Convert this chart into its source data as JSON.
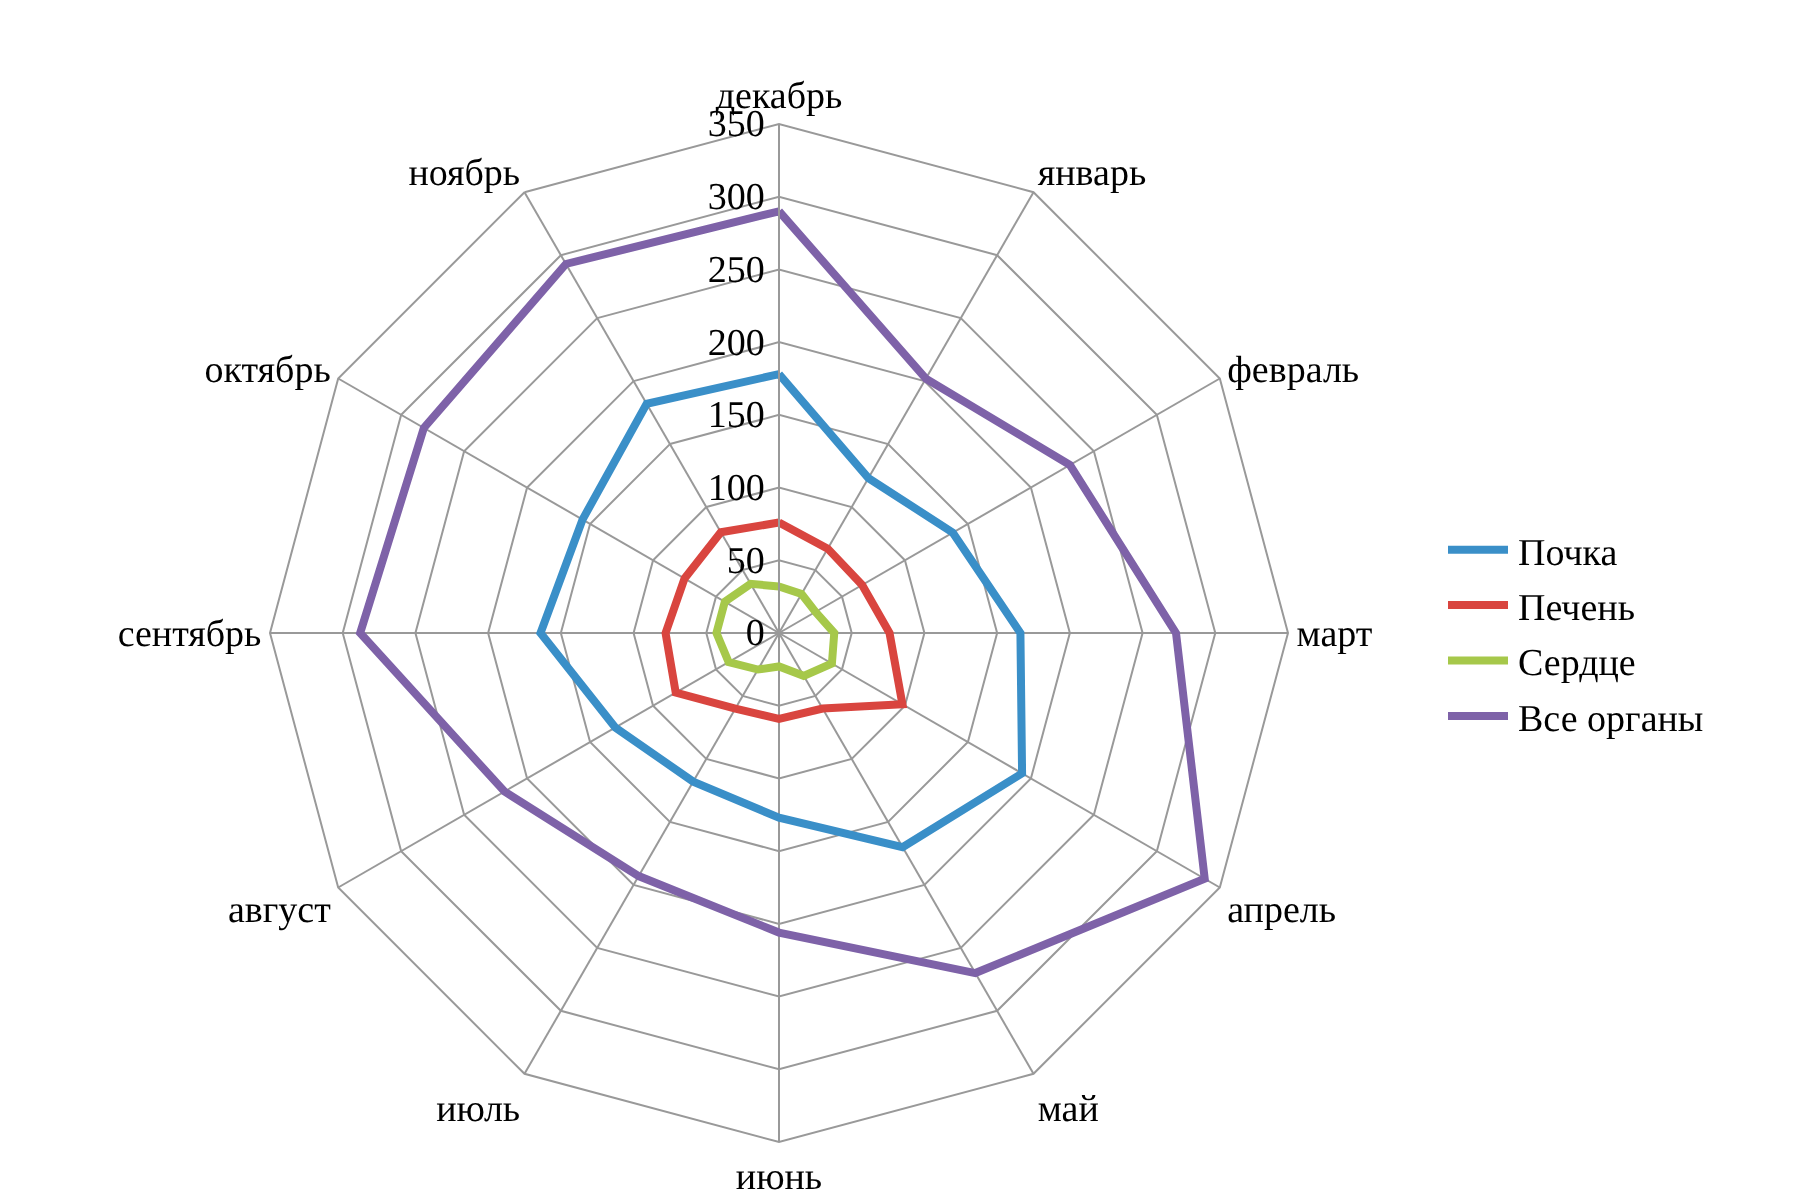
{
  "chart_data": {
    "type": "radar",
    "categories": [
      "декабрь",
      "январь",
      "февраль",
      "март",
      "апрель",
      "май",
      "июнь",
      "июль",
      "август",
      "сентябрь",
      "октябрь",
      "ноябрь"
    ],
    "series": [
      {
        "name": "Почка",
        "color": "#3a8fc8",
        "values": [
          178,
          123,
          138,
          166,
          193,
          170,
          127,
          118,
          130,
          164,
          156,
          182
        ]
      },
      {
        "name": "Печень",
        "color": "#d9453f",
        "values": [
          76,
          67,
          66,
          76,
          98,
          60,
          59,
          60,
          82,
          78,
          75,
          80
        ]
      },
      {
        "name": "Сердце",
        "color": "#a6c84a",
        "values": [
          32,
          31,
          29,
          38,
          42,
          34,
          23,
          29,
          40,
          43,
          43,
          39
        ]
      },
      {
        "name": "Все органы",
        "color": "#7e62a8",
        "values": [
          290,
          202,
          231,
          273,
          338,
          270,
          206,
          193,
          218,
          288,
          282,
          293
        ]
      }
    ],
    "ylim": [
      0,
      350
    ],
    "yticks": [
      0,
      50,
      100,
      150,
      200,
      250,
      300,
      350
    ],
    "grid": true,
    "legend": "right",
    "marker": "none"
  }
}
